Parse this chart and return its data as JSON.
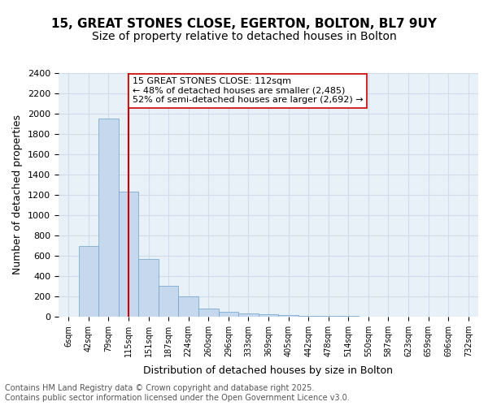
{
  "title_line1": "15, GREAT STONES CLOSE, EGERTON, BOLTON, BL7 9UY",
  "title_line2": "Size of property relative to detached houses in Bolton",
  "xlabel": "Distribution of detached houses by size in Bolton",
  "ylabel": "Number of detached properties",
  "bar_values": [
    0,
    700,
    1950,
    1230,
    570,
    305,
    200,
    80,
    50,
    30,
    25,
    15,
    10,
    5,
    5,
    3,
    2,
    1,
    1,
    0,
    0
  ],
  "categories": [
    "6sqm",
    "42sqm",
    "79sqm",
    "115sqm",
    "151sqm",
    "187sqm",
    "224sqm",
    "260sqm",
    "296sqm",
    "333sqm",
    "369sqm",
    "405sqm",
    "442sqm",
    "478sqm",
    "514sqm",
    "550sqm",
    "587sqm",
    "623sqm",
    "659sqm",
    "696sqm",
    "732sqm"
  ],
  "bar_color": "#c5d8ed",
  "bar_edge_color": "#6ca0c8",
  "vline_x": 3,
  "vline_color": "#cc0000",
  "annotation_text": "15 GREAT STONES CLOSE: 112sqm\n← 48% of detached houses are smaller (2,485)\n52% of semi-detached houses are larger (2,692) →",
  "annotation_box_color": "#ffffff",
  "annotation_box_edge": "#cc0000",
  "ylim": [
    0,
    2400
  ],
  "yticks": [
    0,
    200,
    400,
    600,
    800,
    1000,
    1200,
    1400,
    1600,
    1800,
    2000,
    2200,
    2400
  ],
  "grid_color": "#d0dce8",
  "background_color": "#e8f0f8",
  "footer_text": "Contains HM Land Registry data © Crown copyright and database right 2025.\nContains public sector information licensed under the Open Government Licence v3.0.",
  "title_fontsize": 11,
  "subtitle_fontsize": 10,
  "axis_label_fontsize": 9,
  "tick_fontsize": 8,
  "annotation_fontsize": 8,
  "footer_fontsize": 7
}
